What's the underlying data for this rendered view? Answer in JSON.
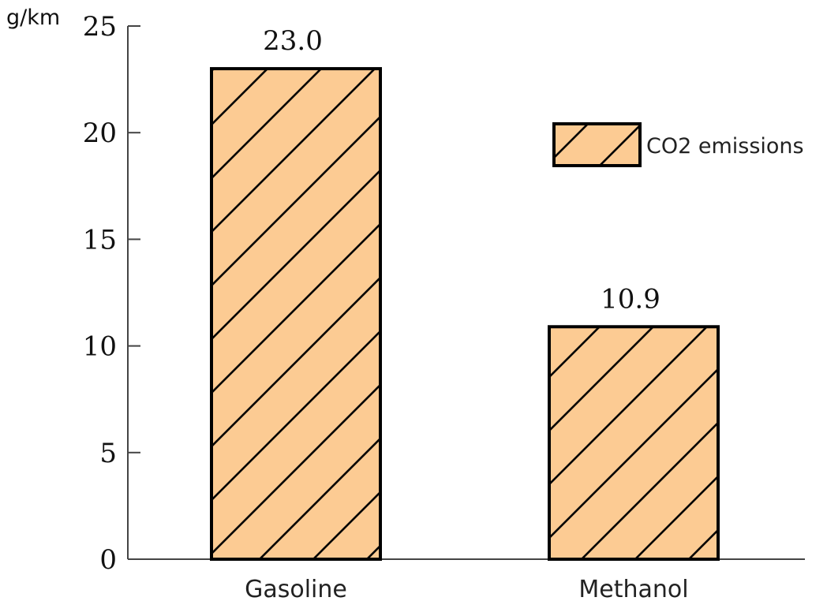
{
  "chart_data": {
    "type": "bar",
    "ylabel": "g/km",
    "categories": [
      "Gasoline",
      "Methanol"
    ],
    "series": [
      {
        "name": "CO2 emissions",
        "values": [
          23.0,
          10.9
        ]
      }
    ],
    "data_labels": [
      "23.0",
      "10.9"
    ],
    "ylim": [
      0,
      25
    ],
    "yticks": [
      0,
      5,
      10,
      15,
      20,
      25
    ],
    "grid": false,
    "legend_position": "right",
    "bar_fill_color": "#FCCB93",
    "bar_edge_color": "#000000",
    "hatch": "diagonal"
  }
}
